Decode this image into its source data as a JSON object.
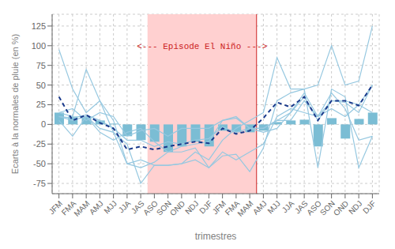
{
  "chart_data": {
    "type": "bar",
    "xlabel": "trimestres",
    "ylabel": "Ecarts à la normales de pluie (en %)",
    "categories": [
      "JFM",
      "FMA",
      "MAM",
      "AMJ",
      "MJJ",
      "JJA",
      "JAS",
      "ASO",
      "SON",
      "OND",
      "NDJ",
      "DJF",
      "JFM",
      "FMA",
      "MAM",
      "AMJ",
      "MJJ",
      "JJA",
      "JAS",
      "ASO",
      "SON",
      "OND",
      "NDJ",
      "DJF"
    ],
    "series": [
      {
        "type": "line",
        "color": "#96c8e0",
        "values": [
          15,
          10,
          70,
          30,
          5,
          -50,
          -55,
          -48,
          -35,
          -35,
          -30,
          -55,
          -40,
          -38,
          -60,
          -30,
          30,
          40,
          45,
          50,
          100,
          50,
          55,
          125
        ]
      },
      {
        "type": "line",
        "color": "#96c8e0",
        "values": [
          10,
          5,
          10,
          -5,
          -10,
          -50,
          -45,
          -52,
          -52,
          -50,
          -45,
          -55,
          -35,
          -45,
          -35,
          -25,
          10,
          20,
          15,
          10,
          20,
          10,
          25,
          50
        ]
      },
      {
        "type": "line",
        "color": "#96c8e0",
        "values": [
          95,
          45,
          15,
          30,
          -10,
          -25,
          -75,
          -52,
          -52,
          -50,
          -35,
          -45,
          -20,
          -5,
          5,
          15,
          85,
          45,
          45,
          -55,
          45,
          35,
          -55,
          -15
        ]
      },
      {
        "type": "line",
        "color": "#96c8e0",
        "values": [
          5,
          -15,
          10,
          -10,
          -20,
          -10,
          -5,
          -22,
          -35,
          -28,
          -25,
          -22,
          5,
          8,
          -5,
          -5,
          5,
          5,
          30,
          10,
          40,
          20,
          -20,
          -15
        ]
      },
      {
        "type": "line",
        "color": "#96c8e0",
        "values": [
          15,
          20,
          5,
          15,
          10,
          -15,
          -8,
          -5,
          -15,
          -5,
          -5,
          -5,
          5,
          10,
          -5,
          -10,
          -5,
          15,
          35,
          5,
          30,
          30,
          25,
          15
        ]
      },
      {
        "type": "line",
        "color": "#96c8e0",
        "values": [
          10,
          8,
          12,
          5,
          -5,
          -20,
          -20,
          -28,
          -22,
          -25,
          -20,
          -18,
          -3,
          -10,
          -5,
          -5,
          5,
          15,
          40,
          10,
          30,
          28,
          15,
          50
        ]
      },
      {
        "type": "bar",
        "color": "#7bbdd4",
        "values": [
          15,
          10,
          10,
          5,
          1,
          -15,
          -20,
          -22,
          -35,
          -28,
          -22,
          -28,
          -8,
          -10,
          -10,
          -8,
          3,
          5,
          6,
          -28,
          8,
          -18,
          7,
          15
        ]
      },
      {
        "type": "line",
        "color": "#1a3a8c",
        "line_style": "dashed",
        "values": [
          35,
          5,
          12,
          2,
          -5,
          -32,
          -28,
          -32,
          -28,
          -25,
          -22,
          -24,
          -5,
          -12,
          -8,
          8,
          28,
          22,
          35,
          5,
          30,
          30,
          24,
          50
        ]
      }
    ],
    "shaded_region": {
      "start": 7,
      "end": 14,
      "color": "#ffd0d0",
      "edge_color": "#cc2222"
    },
    "annotations": [
      {
        "text": "<--- Episode El Niño --->",
        "x": 10.5,
        "y": 100,
        "color": "#cc2222"
      }
    ],
    "ylim": [
      -88,
      140
    ],
    "yticks": [
      -75,
      -50,
      -25,
      0,
      25,
      50,
      75,
      100,
      125
    ],
    "grid": true
  }
}
